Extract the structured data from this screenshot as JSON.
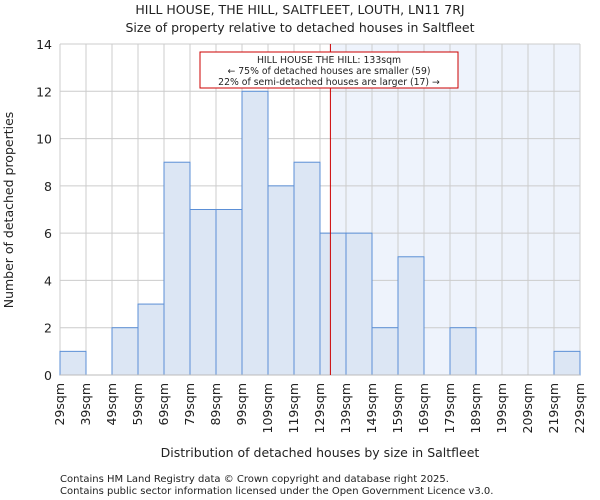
{
  "chart_data": {
    "type": "bar",
    "title": "HILL HOUSE, THE HILL, SALTFLEET, LOUTH, LN11 7RJ",
    "subtitle": "Size of property relative to detached houses in Saltfleet",
    "xlabel": "Distribution of detached houses by size in Saltfleet",
    "ylabel": "Number of detached properties",
    "bin_edges": [
      29,
      39,
      49,
      59,
      69,
      79,
      89,
      99,
      109,
      119,
      129,
      139,
      149,
      159,
      169,
      179,
      189,
      199,
      209,
      219,
      229
    ],
    "x_tick_labels": [
      "29sqm",
      "39sqm",
      "49sqm",
      "59sqm",
      "69sqm",
      "79sqm",
      "89sqm",
      "99sqm",
      "109sqm",
      "119sqm",
      "129sqm",
      "139sqm",
      "149sqm",
      "159sqm",
      "169sqm",
      "179sqm",
      "189sqm",
      "199sqm",
      "209sqm",
      "219sqm",
      "229sqm"
    ],
    "values": [
      1,
      0,
      2,
      3,
      9,
      7,
      7,
      12,
      8,
      9,
      6,
      6,
      2,
      5,
      0,
      2,
      0,
      0,
      0,
      1
    ],
    "ylim": [
      0,
      14
    ],
    "y_ticks": [
      0,
      2,
      4,
      6,
      8,
      10,
      12,
      14
    ],
    "grid": true,
    "marker": {
      "value": 133,
      "color": "#cc0000"
    },
    "annotation": {
      "line1": "HILL HOUSE THE HILL: 133sqm",
      "line2": "← 75% of detached houses are smaller (59)",
      "line3": "22% of semi-detached houses are larger (17) →"
    },
    "colors": {
      "bar_fill": "#dce6f4",
      "bar_stroke": "#5b8fd6",
      "highlight_bg": "#eef3fc",
      "grid": "#cccccc"
    }
  },
  "footer": {
    "line1": "Contains HM Land Registry data © Crown copyright and database right 2025.",
    "line2": "Contains public sector information licensed under the Open Government Licence v3.0."
  }
}
